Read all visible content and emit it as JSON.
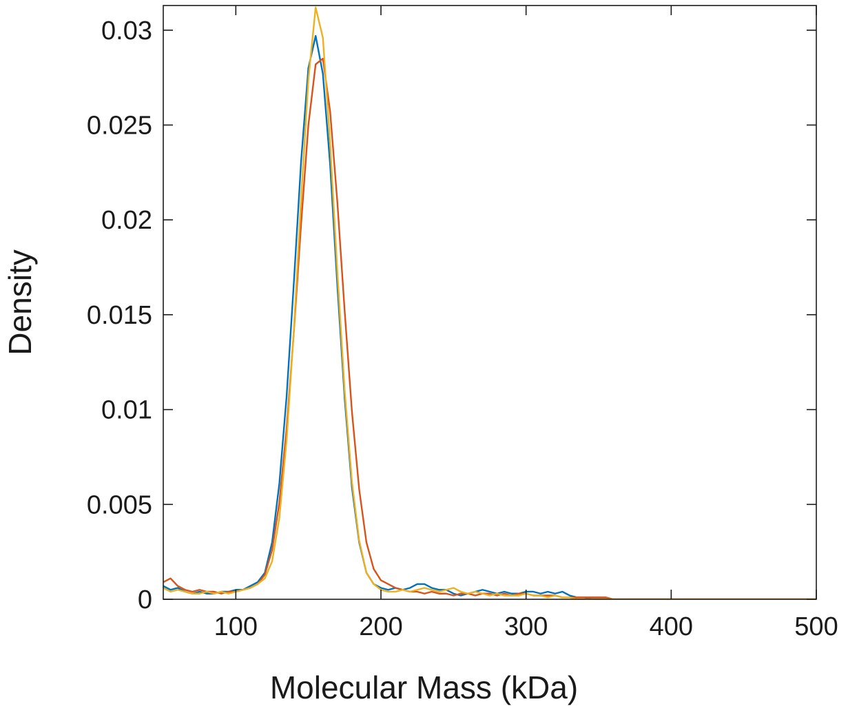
{
  "chart_data": {
    "type": "line",
    "title": "",
    "xlabel": "Molecular Mass (kDa)",
    "ylabel": "Density",
    "xlim": [
      50,
      500
    ],
    "ylim": [
      0,
      0.0313
    ],
    "grid": false,
    "legend": null,
    "background": "#FFFFFF",
    "axis_color": "#1a1a1a",
    "xticks": [
      100,
      200,
      300,
      400,
      500
    ],
    "xtick_labels": [
      "100",
      "200",
      "300",
      "400",
      "500"
    ],
    "yticks": [
      0,
      0.005,
      0.01,
      0.015,
      0.02,
      0.025,
      0.03
    ],
    "ytick_labels": [
      "0",
      "0.005",
      "0.01",
      "0.015",
      "0.02",
      "0.025",
      "0.03"
    ],
    "x": [
      50,
      55,
      60,
      65,
      70,
      75,
      80,
      85,
      90,
      95,
      100,
      105,
      110,
      115,
      120,
      125,
      130,
      135,
      140,
      145,
      150,
      155,
      160,
      165,
      170,
      175,
      180,
      185,
      190,
      195,
      200,
      205,
      210,
      215,
      220,
      225,
      230,
      235,
      240,
      245,
      250,
      255,
      260,
      265,
      270,
      275,
      280,
      285,
      290,
      295,
      300,
      305,
      310,
      315,
      320,
      325,
      330,
      335,
      340,
      345,
      350,
      355,
      360,
      365,
      370,
      375,
      380,
      385,
      390,
      395,
      400,
      405,
      410,
      415,
      420,
      425,
      430,
      435,
      440,
      445,
      450,
      455,
      460,
      465,
      470,
      475,
      480,
      485,
      490,
      495,
      500
    ],
    "series": [
      {
        "name": "density-curve-blue",
        "color": "#0072BD",
        "peak_x": 155,
        "peak_y": 0.0297,
        "values": [
          0.0007,
          0.0005,
          0.0006,
          0.0004,
          0.0003,
          0.0004,
          0.0003,
          0.0003,
          0.0004,
          0.0004,
          0.0005,
          0.0005,
          0.0007,
          0.0009,
          0.0014,
          0.003,
          0.0061,
          0.0107,
          0.0167,
          0.0231,
          0.028,
          0.0297,
          0.0277,
          0.0229,
          0.0165,
          0.0106,
          0.0059,
          0.003,
          0.0014,
          0.0008,
          0.0006,
          0.0005,
          0.0006,
          0.0005,
          0.0006,
          0.0008,
          0.0008,
          0.0006,
          0.0005,
          0.0005,
          0.0003,
          0.0002,
          0.0003,
          0.0004,
          0.0005,
          0.0004,
          0.0003,
          0.0004,
          0.0003,
          0.0003,
          0.0004,
          0.0004,
          0.0003,
          0.0004,
          0.0003,
          0.0004,
          0.0002,
          0.0001,
          0.0001,
          0,
          0,
          0,
          0,
          0,
          0,
          0,
          0,
          0,
          0,
          0,
          0,
          0,
          0,
          0,
          0,
          0,
          0,
          0,
          0,
          0,
          0,
          0,
          0,
          0,
          0,
          0,
          0,
          0,
          0,
          0,
          0
        ]
      },
      {
        "name": "density-curve-orange",
        "color": "#D95319",
        "peak_x": 158,
        "peak_y": 0.0287,
        "values": [
          0.0009,
          0.0011,
          0.0007,
          0.0005,
          0.0004,
          0.0005,
          0.0004,
          0.0004,
          0.0003,
          0.0004,
          0.0004,
          0.0005,
          0.0006,
          0.0008,
          0.0013,
          0.0026,
          0.0051,
          0.009,
          0.0141,
          0.0198,
          0.025,
          0.0282,
          0.0285,
          0.0257,
          0.0209,
          0.0152,
          0.0099,
          0.0058,
          0.003,
          0.0016,
          0.001,
          0.0008,
          0.0006,
          0.0005,
          0.0004,
          0.0004,
          0.0003,
          0.0004,
          0.0003,
          0.0003,
          0.0002,
          0.0003,
          0.0003,
          0.0002,
          0.0003,
          0.0003,
          0.0002,
          0.0003,
          0.0002,
          0.0003,
          0.0003,
          0.0002,
          0.0002,
          0.0002,
          0.0002,
          0.0001,
          0.0001,
          0.0001,
          0.0001,
          0.0001,
          0.0001,
          0.0001,
          0,
          0,
          0,
          0,
          0,
          0,
          0,
          0,
          0,
          0,
          0,
          0,
          0,
          0,
          0,
          0,
          0,
          0,
          0,
          0,
          0,
          0,
          0,
          0,
          0,
          0,
          0,
          0,
          0
        ]
      },
      {
        "name": "density-curve-yellow",
        "color": "#EDB120",
        "peak_x": 157,
        "peak_y": 0.0312,
        "values": [
          0.0006,
          0.0004,
          0.0005,
          0.0004,
          0.0003,
          0.0003,
          0.0004,
          0.0003,
          0.0004,
          0.0003,
          0.0004,
          0.0005,
          0.0006,
          0.0008,
          0.0011,
          0.002,
          0.0043,
          0.0084,
          0.0142,
          0.0211,
          0.0274,
          0.0312,
          0.0296,
          0.024,
          0.0172,
          0.011,
          0.0062,
          0.0031,
          0.0014,
          0.0008,
          0.0005,
          0.0004,
          0.0004,
          0.0005,
          0.0004,
          0.0005,
          0.0006,
          0.0005,
          0.0004,
          0.0005,
          0.0006,
          0.0004,
          0.0003,
          0.0004,
          0.0003,
          0.0002,
          0.0003,
          0.0002,
          0.0002,
          0.0002,
          0.0003,
          0.0002,
          0.0002,
          0.0001,
          0.0002,
          0.0001,
          0.0001,
          0,
          0,
          0,
          0,
          0,
          0,
          0,
          0,
          0,
          0,
          0,
          0,
          0,
          0,
          0,
          0,
          0,
          0,
          0,
          0,
          0,
          0,
          0,
          0,
          0,
          0,
          0,
          0,
          0,
          0,
          0,
          0,
          0,
          0
        ]
      }
    ]
  }
}
